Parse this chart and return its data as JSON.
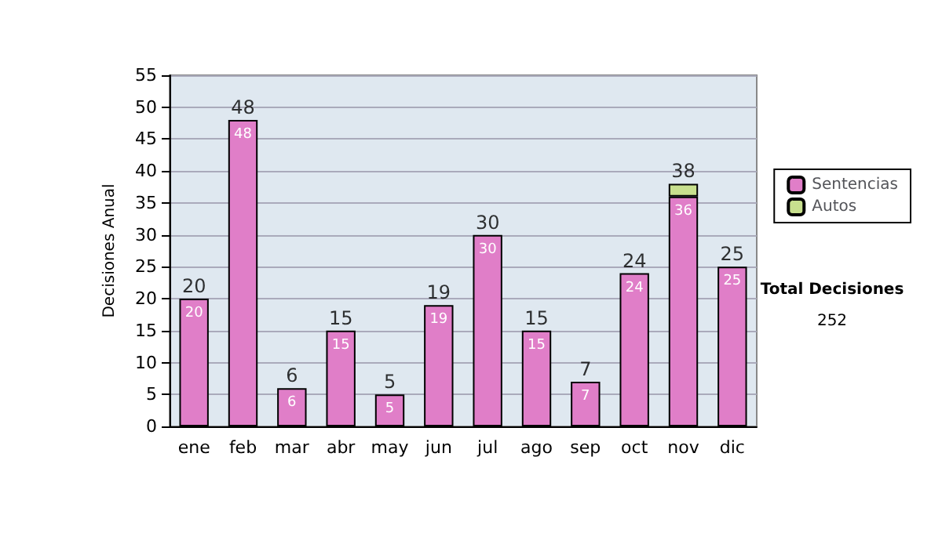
{
  "chart_data": {
    "type": "bar",
    "stacked": true,
    "ylabel": "Decisiones Anual",
    "categories": [
      "ene",
      "feb",
      "mar",
      "abr",
      "may",
      "jun",
      "jul",
      "ago",
      "sep",
      "oct",
      "nov",
      "dic"
    ],
    "series": [
      {
        "name": "Sentencias",
        "color": "#e07ec8",
        "values": [
          20,
          48,
          6,
          15,
          5,
          19,
          30,
          15,
          7,
          24,
          36,
          25
        ],
        "value_labels": [
          "20",
          "48",
          "6",
          "15",
          "5",
          "19",
          "30",
          "15",
          "7",
          "24",
          "36",
          "25"
        ]
      },
      {
        "name": "Autos",
        "color": "#c8e08e",
        "values": [
          null,
          null,
          null,
          null,
          null,
          null,
          null,
          null,
          null,
          null,
          2,
          null
        ]
      }
    ],
    "totals": [
      "20",
      "48",
      "6",
      "15",
      "5",
      "19",
      "30",
      "15",
      "7",
      "24",
      "38",
      "25"
    ],
    "ylim": [
      0,
      55
    ],
    "yticks": [
      0,
      5,
      10,
      15,
      20,
      25,
      30,
      35,
      40,
      45,
      50,
      55
    ],
    "grid": "y",
    "legend": "right",
    "annotations": [
      "Total Decisiones",
      "252"
    ]
  }
}
